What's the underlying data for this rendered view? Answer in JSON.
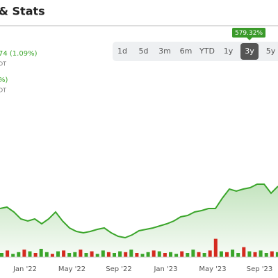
{
  "header": {
    "title": "& Stats"
  },
  "quotes": [
    {
      "change": "74 (1.09%)",
      "note": "DT"
    },
    {
      "change": "%)",
      "note": "DT"
    }
  ],
  "ranges": {
    "buttons": [
      "1d",
      "5d",
      "3m",
      "6m",
      "YTD",
      "1y",
      "3y",
      "5y"
    ],
    "selected": 6,
    "badge": "579.32%"
  },
  "chart_data": {
    "type": "area",
    "values": [
      60,
      62,
      55,
      45,
      42,
      45,
      38,
      45,
      55,
      42,
      32,
      27,
      25,
      27,
      30,
      32,
      25,
      20,
      18,
      22,
      28,
      30,
      32,
      35,
      38,
      42,
      48,
      50,
      55,
      57,
      60,
      60,
      75,
      88,
      85,
      88,
      90,
      95,
      95,
      82,
      92
    ],
    "ylim": [
      0,
      120
    ],
    "color": "#3aa52a",
    "xticks": [
      "Jan '22",
      "May '22",
      "Sep '22",
      "Jan '23",
      "May '23",
      "Sep '23"
    ],
    "volume": {
      "vlim": [
        0,
        25
      ],
      "series": [
        {
          "name": "up",
          "color": "#3aa52a",
          "values": [
            5,
            null,
            4,
            6,
            null,
            7,
            null,
            10,
            6,
            null,
            7,
            null,
            5,
            6,
            null,
            5,
            null,
            4,
            8,
            null,
            5,
            7,
            null,
            9,
            null,
            4,
            6,
            null,
            7,
            null,
            6,
            4,
            null,
            5,
            9,
            null,
            5,
            null,
            null,
            7,
            null,
            9,
            5,
            null,
            7,
            null,
            8,
            5,
            null,
            6
          ]
        },
        {
          "name": "down",
          "color": "#d42a20",
          "values": [
            null,
            8,
            null,
            null,
            9,
            null,
            5,
            null,
            null,
            4,
            null,
            8,
            null,
            null,
            9,
            null,
            7,
            null,
            null,
            6,
            null,
            null,
            6,
            null,
            5,
            null,
            null,
            8,
            null,
            5,
            null,
            null,
            7,
            null,
            null,
            6,
            null,
            8,
            22,
            null,
            6,
            null,
            null,
            12,
            null,
            6,
            null,
            null,
            7,
            null
          ]
        }
      ]
    }
  }
}
